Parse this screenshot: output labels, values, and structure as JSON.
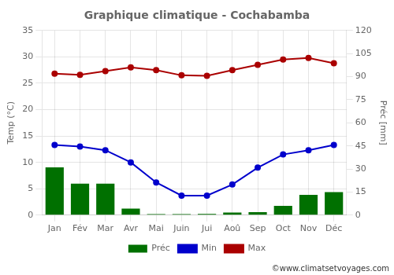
{
  "chart_data": {
    "type": "bar",
    "title": "Graphique climatique - Cochabamba",
    "categories": [
      "Jan",
      "Fév",
      "Mar",
      "Avr",
      "Mai",
      "Juin",
      "Jui",
      "Aoû",
      "Sep",
      "Oct",
      "Nov",
      "Déc"
    ],
    "series": [
      {
        "name": "Préc",
        "type": "bar",
        "axis": "y2",
        "color": "#007000",
        "values": [
          31.0,
          20.5,
          20.5,
          4.2,
          0.7,
          0.7,
          0.8,
          1.7,
          2.0,
          6.0,
          13.2,
          15.0
        ]
      },
      {
        "name": "Min",
        "type": "line",
        "color": "#0000cc",
        "marker": "circle",
        "values": [
          13.3,
          13.0,
          12.3,
          10.0,
          6.2,
          3.7,
          3.7,
          5.8,
          9.0,
          11.5,
          12.3,
          13.3
        ]
      },
      {
        "name": "Max",
        "type": "line",
        "color": "#aa0000",
        "marker": "circle",
        "values": [
          26.8,
          26.6,
          27.3,
          28.0,
          27.5,
          26.5,
          26.4,
          27.5,
          28.5,
          29.5,
          29.8,
          28.8
        ]
      }
    ],
    "ylabel": "Temp (°C)",
    "y2label": "Préc [mm]",
    "ylim": [
      0,
      35
    ],
    "yticks": [
      0,
      5,
      10,
      15,
      20,
      25,
      30,
      35
    ],
    "y2lim": [
      0,
      120
    ],
    "y2ticks": [
      0,
      15,
      30,
      45,
      60,
      75,
      90,
      105,
      120
    ],
    "grid": true,
    "legend": "bottom",
    "annotations": [
      "©www.climatsetvoyages.com"
    ]
  }
}
